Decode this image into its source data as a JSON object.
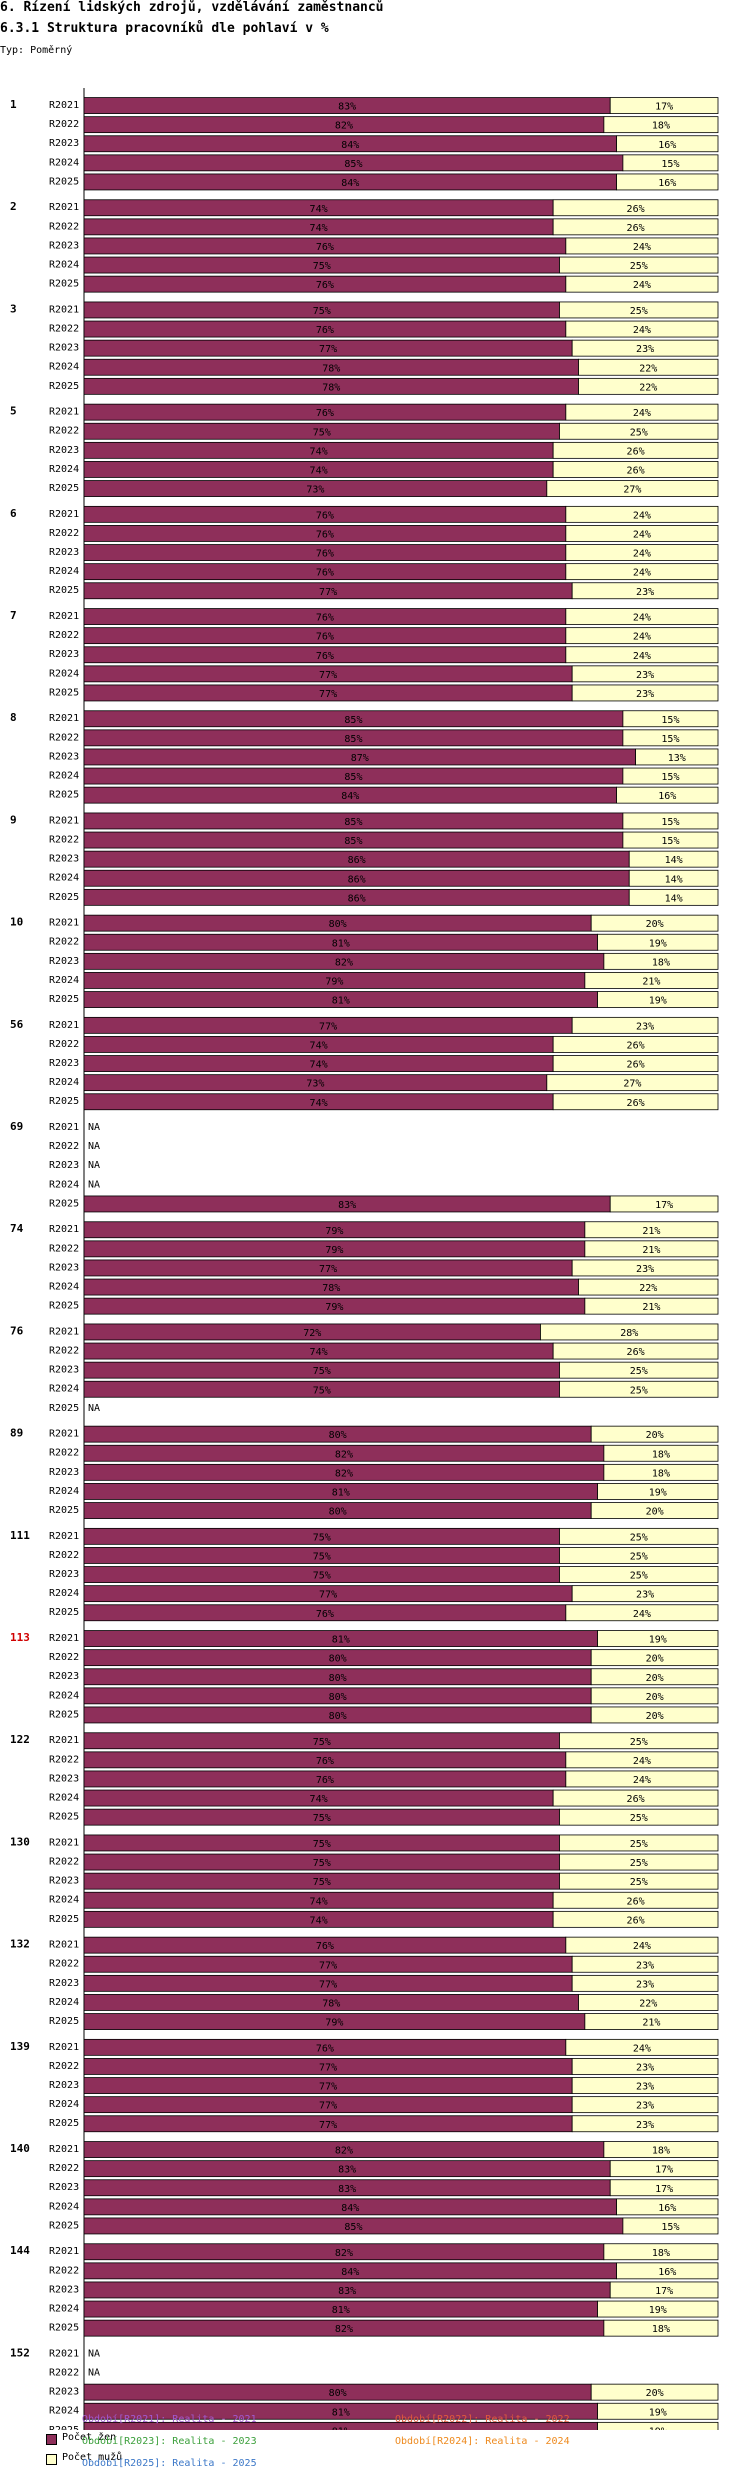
{
  "header": {
    "title": "6. Řízení lidských zdrojů, vzdělávání zaměstnanců",
    "subtitle": "6.3.1 Struktura pracovníků dle pohlaví v %",
    "type_label": "Typ: Poměrný"
  },
  "colors": {
    "zeny": "#8e2f5a",
    "muzi": "#ffffcc",
    "highlight_group": "#d00000"
  },
  "legend": {
    "zeny": "Počet žen",
    "muzi": "Počet mužů"
  },
  "periods_legend": [
    {
      "text": "Období[R2021]: Realita - 2021",
      "color": "#a05ad0"
    },
    {
      "text": "Období[R2022]: Realita - 2022",
      "color": "#e05a3c"
    },
    {
      "text": "Období[R2023]: Realita - 2023",
      "color": "#3ca03c"
    },
    {
      "text": "Období[R2024]: Realita - 2024",
      "color": "#ee8a1e"
    },
    {
      "text": "Období[R2025]: Realita - 2025",
      "color": "#3c78c8"
    }
  ],
  "chart_data": {
    "type": "bar",
    "orientation": "horizontal-stacked-100",
    "title": "6.3.1 Struktura pracovníků dle pohlaví v %",
    "series_names": [
      "Počet žen",
      "Počet mužů"
    ],
    "periods": [
      "R2021",
      "R2022",
      "R2023",
      "R2024",
      "R2025"
    ],
    "na_label": "NA",
    "highlight_group": "113",
    "groups": [
      {
        "label": "1",
        "zeny": [
          83,
          82,
          84,
          85,
          84
        ]
      },
      {
        "label": "2",
        "zeny": [
          74,
          74,
          76,
          75,
          76
        ]
      },
      {
        "label": "3",
        "zeny": [
          75,
          76,
          77,
          78,
          78
        ]
      },
      {
        "label": "5",
        "zeny": [
          76,
          75,
          74,
          74,
          73
        ]
      },
      {
        "label": "6",
        "zeny": [
          76,
          76,
          76,
          76,
          77
        ]
      },
      {
        "label": "7",
        "zeny": [
          76,
          76,
          76,
          77,
          77
        ]
      },
      {
        "label": "8",
        "zeny": [
          85,
          85,
          87,
          85,
          84
        ]
      },
      {
        "label": "9",
        "zeny": [
          85,
          85,
          86,
          86,
          86
        ]
      },
      {
        "label": "10",
        "zeny": [
          80,
          81,
          82,
          79,
          81
        ]
      },
      {
        "label": "56",
        "zeny": [
          77,
          74,
          74,
          73,
          74
        ]
      },
      {
        "label": "69",
        "zeny": [
          null,
          null,
          null,
          null,
          83
        ]
      },
      {
        "label": "74",
        "zeny": [
          79,
          79,
          77,
          78,
          79
        ]
      },
      {
        "label": "76",
        "zeny": [
          72,
          74,
          75,
          75,
          null
        ]
      },
      {
        "label": "89",
        "zeny": [
          80,
          82,
          82,
          81,
          80
        ]
      },
      {
        "label": "111",
        "zeny": [
          75,
          75,
          75,
          77,
          76
        ]
      },
      {
        "label": "113",
        "zeny": [
          81,
          80,
          80,
          80,
          80
        ]
      },
      {
        "label": "122",
        "zeny": [
          75,
          76,
          76,
          74,
          75
        ]
      },
      {
        "label": "130",
        "zeny": [
          75,
          75,
          75,
          74,
          74
        ]
      },
      {
        "label": "132",
        "zeny": [
          76,
          77,
          77,
          78,
          79
        ]
      },
      {
        "label": "139",
        "zeny": [
          76,
          77,
          77,
          77,
          77
        ]
      },
      {
        "label": "140",
        "zeny": [
          82,
          83,
          83,
          84,
          85
        ]
      },
      {
        "label": "144",
        "zeny": [
          82,
          84,
          83,
          81,
          82
        ]
      },
      {
        "label": "152",
        "zeny": [
          null,
          null,
          80,
          81,
          81
        ]
      }
    ]
  }
}
